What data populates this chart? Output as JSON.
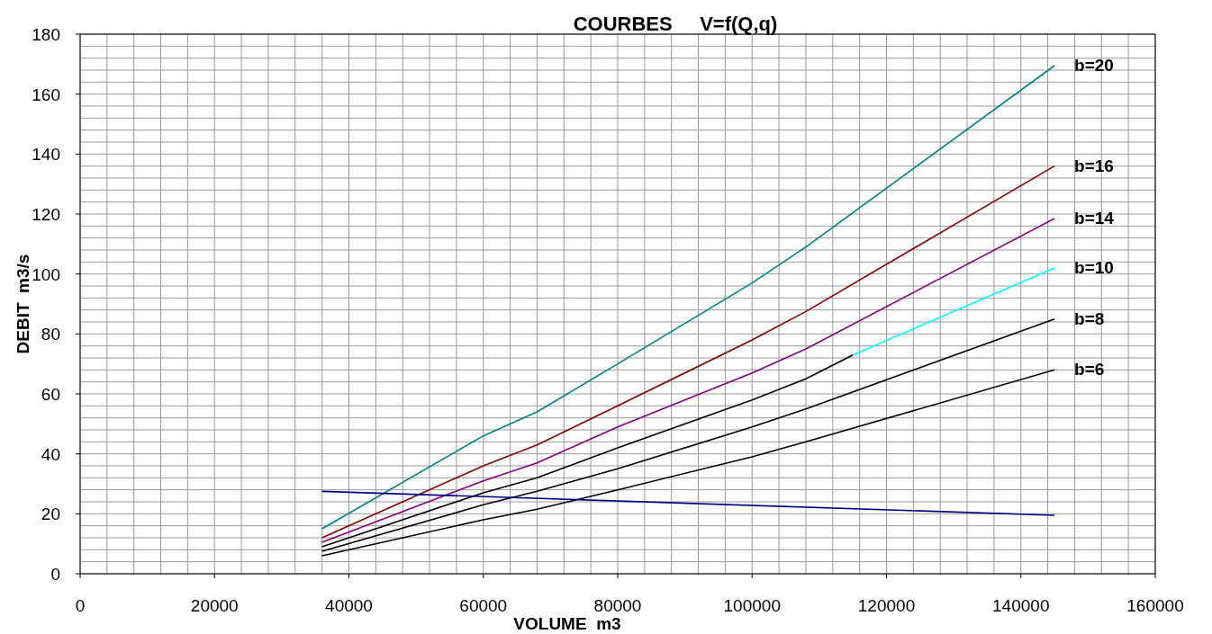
{
  "chart_data": {
    "type": "line",
    "title": "COURBES     V=f(Q,q)",
    "xlabel": "VOLUME  m3",
    "ylabel": "DEBIT  m3/s",
    "xlim": [
      0,
      160000
    ],
    "ylim": [
      0,
      180
    ],
    "xticks": [
      0,
      {
        "value": 4000,
        "label": null
      },
      {
        "value": 8000,
        "label": null
      },
      {
        "value": 12000,
        "label": null
      },
      {
        "value": 16000,
        "label": null
      },
      20000,
      {
        "value": 24000,
        "label": null
      },
      {
        "value": 28000,
        "label": null
      },
      {
        "value": 32000,
        "label": null
      },
      {
        "value": 36000,
        "label": null
      },
      40000,
      {
        "value": 44000,
        "label": null
      },
      {
        "value": 48000,
        "label": null
      },
      {
        "value": 52000,
        "label": null
      },
      {
        "value": 56000,
        "label": null
      },
      60000,
      {
        "value": 64000,
        "label": null
      },
      {
        "value": 68000,
        "label": null
      },
      {
        "value": 72000,
        "label": null
      },
      {
        "value": 76000,
        "label": null
      },
      80000,
      {
        "value": 84000,
        "label": null
      },
      {
        "value": 88000,
        "label": null
      },
      {
        "value": 92000,
        "label": null
      },
      {
        "value": 96000,
        "label": null
      },
      100000,
      {
        "value": 104000,
        "label": null
      },
      {
        "value": 108000,
        "label": null
      },
      {
        "value": 112000,
        "label": null
      },
      {
        "value": 116000,
        "label": null
      },
      120000,
      {
        "value": 124000,
        "label": null
      },
      {
        "value": 128000,
        "label": null
      },
      {
        "value": 132000,
        "label": null
      },
      {
        "value": 136000,
        "label": null
      },
      140000,
      {
        "value": 144000,
        "label": null
      },
      {
        "value": 148000,
        "label": null
      },
      {
        "value": 152000,
        "label": null
      },
      {
        "value": 156000,
        "label": null
      },
      160000
    ],
    "yticks": [
      0,
      {
        "value": 4,
        "label": null
      },
      {
        "value": 8,
        "label": null
      },
      {
        "value": 12,
        "label": null
      },
      {
        "value": 16,
        "label": null
      },
      20,
      {
        "value": 24,
        "label": null
      },
      {
        "value": 28,
        "label": null
      },
      {
        "value": 32,
        "label": null
      },
      {
        "value": 36,
        "label": null
      },
      40,
      {
        "value": 44,
        "label": null
      },
      {
        "value": 48,
        "label": null
      },
      {
        "value": 52,
        "label": null
      },
      {
        "value": 56,
        "label": null
      },
      60,
      {
        "value": 64,
        "label": null
      },
      {
        "value": 68,
        "label": null
      },
      {
        "value": 72,
        "label": null
      },
      {
        "value": 76,
        "label": null
      },
      80,
      {
        "value": 84,
        "label": null
      },
      {
        "value": 88,
        "label": null
      },
      {
        "value": 92,
        "label": null
      },
      {
        "value": 96,
        "label": null
      },
      100,
      {
        "value": 104,
        "label": null
      },
      {
        "value": 108,
        "label": null
      },
      {
        "value": 112,
        "label": null
      },
      {
        "value": 116,
        "label": null
      },
      120,
      {
        "value": 124,
        "label": null
      },
      {
        "value": 128,
        "label": null
      },
      {
        "value": 132,
        "label": null
      },
      {
        "value": 136,
        "label": null
      },
      140,
      {
        "value": 144,
        "label": null
      },
      {
        "value": 148,
        "label": null
      },
      {
        "value": 152,
        "label": null
      },
      {
        "value": 156,
        "label": null
      },
      160,
      {
        "value": 164,
        "label": null
      },
      {
        "value": 168,
        "label": null
      },
      {
        "value": 172,
        "label": null
      },
      {
        "value": 176,
        "label": null
      },
      180
    ],
    "grid": true,
    "marker": "none",
    "line_style": "solid",
    "series": [
      {
        "name": "b=20",
        "color": "#008080",
        "x": [
          36000,
          60000,
          68000,
          80000,
          100000,
          108000,
          145000
        ],
        "values": [
          15,
          46,
          54,
          70,
          97,
          109,
          169.5
        ]
      },
      {
        "name": "b=16",
        "color": "#800000",
        "x": [
          36000,
          60000,
          68000,
          80000,
          100000,
          108000,
          145000
        ],
        "values": [
          12,
          36,
          43,
          56,
          78,
          87.5,
          136
        ]
      },
      {
        "name": "b=14",
        "color": "#800080",
        "x": [
          36000,
          60000,
          68000,
          80000,
          100000,
          108000,
          145000
        ],
        "values": [
          10.5,
          31,
          37,
          49,
          67,
          75,
          118.5
        ]
      },
      {
        "color": "#000000",
        "x": [
          36000,
          60000,
          68000,
          80000,
          100000,
          108000,
          115000
        ],
        "values": [
          9,
          27,
          32,
          42,
          58,
          65,
          73
        ]
      },
      {
        "name": "b=10",
        "color": "#00ffff",
        "x": [
          115000,
          145000
        ],
        "values": [
          73,
          102
        ]
      },
      {
        "name": "b=8",
        "color": "#000000",
        "x": [
          36000,
          60000,
          68000,
          80000,
          100000,
          108000,
          145000
        ],
        "values": [
          7.5,
          23,
          27.5,
          35,
          49,
          55,
          85
        ]
      },
      {
        "name": "b=6",
        "color": "#000000",
        "x": [
          36000,
          60000,
          68000,
          80000,
          100000,
          108000,
          145000
        ],
        "values": [
          6,
          18,
          21.5,
          28,
          39,
          44,
          68
        ]
      },
      {
        "color": "#000080",
        "x": [
          36000,
          145000
        ],
        "values": [
          27.5,
          19.5
        ]
      }
    ]
  }
}
